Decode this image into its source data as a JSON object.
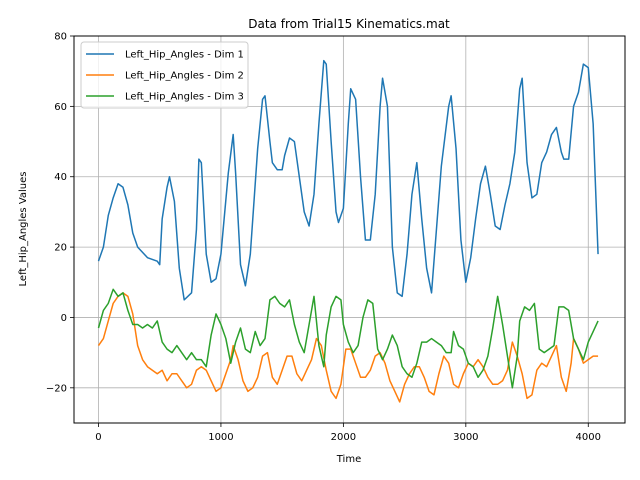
{
  "chart_data": {
    "type": "line",
    "title": "Data from Trial15 Kinematics.mat",
    "xlabel": "Time",
    "ylabel": "Left_Hip_Angles Values",
    "xlim": [
      -200,
      4300
    ],
    "ylim": [
      -30,
      80
    ],
    "xticks": [
      0,
      1000,
      2000,
      3000,
      4000
    ],
    "yticks": [
      -20,
      0,
      20,
      40,
      60,
      80
    ],
    "grid": true,
    "legend_position": "top-left",
    "series": [
      {
        "name": "Left_Hip_Angles - Dim 1",
        "color": "#1f77b4",
        "points": [
          [
            0,
            16
          ],
          [
            40,
            20
          ],
          [
            80,
            29
          ],
          [
            120,
            34
          ],
          [
            160,
            38
          ],
          [
            200,
            37
          ],
          [
            240,
            32
          ],
          [
            280,
            24
          ],
          [
            320,
            20
          ],
          [
            400,
            17
          ],
          [
            480,
            16
          ],
          [
            500,
            15
          ],
          [
            520,
            28
          ],
          [
            560,
            37
          ],
          [
            580,
            40
          ],
          [
            620,
            33
          ],
          [
            660,
            14
          ],
          [
            700,
            5
          ],
          [
            760,
            7
          ],
          [
            800,
            25
          ],
          [
            820,
            45
          ],
          [
            840,
            44
          ],
          [
            880,
            18
          ],
          [
            920,
            10
          ],
          [
            960,
            11
          ],
          [
            1000,
            18
          ],
          [
            1060,
            41
          ],
          [
            1100,
            52
          ],
          [
            1120,
            41
          ],
          [
            1160,
            15
          ],
          [
            1200,
            9
          ],
          [
            1240,
            18
          ],
          [
            1300,
            48
          ],
          [
            1340,
            62
          ],
          [
            1360,
            63
          ],
          [
            1400,
            50
          ],
          [
            1420,
            44
          ],
          [
            1460,
            42
          ],
          [
            1500,
            42
          ],
          [
            1520,
            46
          ],
          [
            1560,
            51
          ],
          [
            1600,
            50
          ],
          [
            1640,
            40
          ],
          [
            1680,
            30
          ],
          [
            1720,
            26
          ],
          [
            1760,
            35
          ],
          [
            1800,
            55
          ],
          [
            1840,
            73
          ],
          [
            1860,
            72
          ],
          [
            1900,
            50
          ],
          [
            1940,
            30
          ],
          [
            1960,
            27
          ],
          [
            2000,
            31
          ],
          [
            2040,
            55
          ],
          [
            2060,
            65
          ],
          [
            2100,
            62
          ],
          [
            2140,
            40
          ],
          [
            2180,
            22
          ],
          [
            2220,
            22
          ],
          [
            2260,
            35
          ],
          [
            2300,
            60
          ],
          [
            2320,
            68
          ],
          [
            2360,
            60
          ],
          [
            2400,
            20
          ],
          [
            2440,
            7
          ],
          [
            2480,
            6
          ],
          [
            2520,
            18
          ],
          [
            2560,
            35
          ],
          [
            2600,
            44
          ],
          [
            2640,
            28
          ],
          [
            2680,
            14
          ],
          [
            2720,
            7
          ],
          [
            2760,
            25
          ],
          [
            2800,
            43
          ],
          [
            2860,
            60
          ],
          [
            2880,
            63
          ],
          [
            2920,
            48
          ],
          [
            2960,
            22
          ],
          [
            3000,
            10
          ],
          [
            3040,
            17
          ],
          [
            3080,
            28
          ],
          [
            3120,
            38
          ],
          [
            3160,
            43
          ],
          [
            3200,
            35
          ],
          [
            3240,
            26
          ],
          [
            3280,
            25
          ],
          [
            3320,
            32
          ],
          [
            3360,
            38
          ],
          [
            3400,
            47
          ],
          [
            3440,
            65
          ],
          [
            3460,
            68
          ],
          [
            3500,
            44
          ],
          [
            3540,
            34
          ],
          [
            3580,
            35
          ],
          [
            3620,
            44
          ],
          [
            3660,
            47
          ],
          [
            3700,
            52
          ],
          [
            3740,
            54
          ],
          [
            3780,
            47
          ],
          [
            3800,
            45
          ],
          [
            3840,
            45
          ],
          [
            3880,
            60
          ],
          [
            3920,
            64
          ],
          [
            3960,
            72
          ],
          [
            4000,
            71
          ],
          [
            4040,
            55
          ],
          [
            4080,
            18
          ]
        ]
      },
      {
        "name": "Left_Hip_Angles - Dim 2",
        "color": "#ff7f0e",
        "points": [
          [
            0,
            -8
          ],
          [
            40,
            -6
          ],
          [
            80,
            -1
          ],
          [
            120,
            4
          ],
          [
            160,
            6
          ],
          [
            200,
            7
          ],
          [
            240,
            6
          ],
          [
            280,
            1
          ],
          [
            320,
            -8
          ],
          [
            360,
            -12
          ],
          [
            400,
            -14
          ],
          [
            440,
            -15
          ],
          [
            480,
            -16
          ],
          [
            520,
            -15
          ],
          [
            560,
            -18
          ],
          [
            600,
            -16
          ],
          [
            640,
            -16
          ],
          [
            680,
            -18
          ],
          [
            720,
            -20
          ],
          [
            760,
            -19
          ],
          [
            800,
            -15
          ],
          [
            840,
            -14
          ],
          [
            880,
            -15
          ],
          [
            920,
            -18
          ],
          [
            960,
            -21
          ],
          [
            1000,
            -20
          ],
          [
            1040,
            -16
          ],
          [
            1080,
            -12
          ],
          [
            1100,
            -8
          ],
          [
            1140,
            -12
          ],
          [
            1180,
            -18
          ],
          [
            1220,
            -21
          ],
          [
            1260,
            -20
          ],
          [
            1300,
            -17
          ],
          [
            1340,
            -11
          ],
          [
            1380,
            -10
          ],
          [
            1420,
            -17
          ],
          [
            1460,
            -19
          ],
          [
            1500,
            -15
          ],
          [
            1540,
            -11
          ],
          [
            1580,
            -11
          ],
          [
            1620,
            -16
          ],
          [
            1660,
            -18
          ],
          [
            1700,
            -15
          ],
          [
            1740,
            -12
          ],
          [
            1780,
            -6
          ],
          [
            1820,
            -8
          ],
          [
            1860,
            -15
          ],
          [
            1900,
            -21
          ],
          [
            1940,
            -23
          ],
          [
            1980,
            -19
          ],
          [
            2020,
            -9
          ],
          [
            2060,
            -9
          ],
          [
            2100,
            -13
          ],
          [
            2140,
            -17
          ],
          [
            2180,
            -17
          ],
          [
            2220,
            -15
          ],
          [
            2260,
            -11
          ],
          [
            2300,
            -10
          ],
          [
            2340,
            -13
          ],
          [
            2380,
            -18
          ],
          [
            2420,
            -21
          ],
          [
            2460,
            -24
          ],
          [
            2500,
            -19
          ],
          [
            2540,
            -16
          ],
          [
            2580,
            -14
          ],
          [
            2620,
            -14
          ],
          [
            2660,
            -17
          ],
          [
            2700,
            -21
          ],
          [
            2740,
            -22
          ],
          [
            2780,
            -16
          ],
          [
            2820,
            -11
          ],
          [
            2860,
            -13
          ],
          [
            2900,
            -19
          ],
          [
            2940,
            -20
          ],
          [
            2980,
            -16
          ],
          [
            3020,
            -13
          ],
          [
            3060,
            -14
          ],
          [
            3100,
            -12
          ],
          [
            3140,
            -14
          ],
          [
            3180,
            -17
          ],
          [
            3220,
            -19
          ],
          [
            3260,
            -19
          ],
          [
            3300,
            -18
          ],
          [
            3340,
            -15
          ],
          [
            3380,
            -7
          ],
          [
            3420,
            -11
          ],
          [
            3460,
            -16
          ],
          [
            3500,
            -23
          ],
          [
            3540,
            -22
          ],
          [
            3580,
            -15
          ],
          [
            3620,
            -13
          ],
          [
            3660,
            -14
          ],
          [
            3700,
            -11
          ],
          [
            3740,
            -8
          ],
          [
            3780,
            -17
          ],
          [
            3820,
            -21
          ],
          [
            3860,
            -13
          ],
          [
            3880,
            -6
          ],
          [
            3920,
            -9
          ],
          [
            3960,
            -13
          ],
          [
            4000,
            -12
          ],
          [
            4040,
            -11
          ],
          [
            4080,
            -11
          ]
        ]
      },
      {
        "name": "Left_Hip_Angles - Dim 3",
        "color": "#2ca02c",
        "points": [
          [
            0,
            -3
          ],
          [
            40,
            2
          ],
          [
            80,
            4
          ],
          [
            120,
            8
          ],
          [
            160,
            6
          ],
          [
            200,
            7
          ],
          [
            240,
            2
          ],
          [
            280,
            -2
          ],
          [
            320,
            -2
          ],
          [
            360,
            -3
          ],
          [
            400,
            -2
          ],
          [
            440,
            -3
          ],
          [
            480,
            -1
          ],
          [
            520,
            -7
          ],
          [
            560,
            -9
          ],
          [
            600,
            -10
          ],
          [
            640,
            -8
          ],
          [
            680,
            -10
          ],
          [
            720,
            -12
          ],
          [
            760,
            -10
          ],
          [
            800,
            -12
          ],
          [
            840,
            -12
          ],
          [
            880,
            -14
          ],
          [
            920,
            -5
          ],
          [
            960,
            1
          ],
          [
            1000,
            -2
          ],
          [
            1040,
            -6
          ],
          [
            1080,
            -13
          ],
          [
            1120,
            -7
          ],
          [
            1160,
            -3
          ],
          [
            1200,
            -9
          ],
          [
            1240,
            -10
          ],
          [
            1280,
            -4
          ],
          [
            1320,
            -8
          ],
          [
            1360,
            -6
          ],
          [
            1400,
            5
          ],
          [
            1440,
            6
          ],
          [
            1480,
            4
          ],
          [
            1520,
            3
          ],
          [
            1560,
            5
          ],
          [
            1600,
            -2
          ],
          [
            1640,
            -7
          ],
          [
            1680,
            -10
          ],
          [
            1720,
            -2
          ],
          [
            1760,
            6
          ],
          [
            1800,
            -8
          ],
          [
            1840,
            -14
          ],
          [
            1860,
            -5
          ],
          [
            1900,
            3
          ],
          [
            1940,
            6
          ],
          [
            1980,
            5
          ],
          [
            2000,
            -2
          ],
          [
            2040,
            -7
          ],
          [
            2080,
            -10
          ],
          [
            2120,
            -8
          ],
          [
            2160,
            0
          ],
          [
            2200,
            5
          ],
          [
            2240,
            4
          ],
          [
            2280,
            -9
          ],
          [
            2320,
            -12
          ],
          [
            2360,
            -9
          ],
          [
            2400,
            -5
          ],
          [
            2440,
            -8
          ],
          [
            2480,
            -14
          ],
          [
            2520,
            -16
          ],
          [
            2560,
            -17
          ],
          [
            2600,
            -13
          ],
          [
            2640,
            -7
          ],
          [
            2680,
            -7
          ],
          [
            2720,
            -6
          ],
          [
            2760,
            -7
          ],
          [
            2800,
            -8
          ],
          [
            2840,
            -10
          ],
          [
            2880,
            -10
          ],
          [
            2900,
            -4
          ],
          [
            2940,
            -8
          ],
          [
            2980,
            -9
          ],
          [
            3020,
            -13
          ],
          [
            3060,
            -14
          ],
          [
            3100,
            -17
          ],
          [
            3140,
            -15
          ],
          [
            3180,
            -11
          ],
          [
            3220,
            -3
          ],
          [
            3260,
            6
          ],
          [
            3300,
            -2
          ],
          [
            3340,
            -11
          ],
          [
            3380,
            -20
          ],
          [
            3420,
            -11
          ],
          [
            3440,
            -1
          ],
          [
            3480,
            3
          ],
          [
            3520,
            2
          ],
          [
            3560,
            4
          ],
          [
            3600,
            -9
          ],
          [
            3640,
            -10
          ],
          [
            3680,
            -9
          ],
          [
            3720,
            -8
          ],
          [
            3760,
            3
          ],
          [
            3800,
            3
          ],
          [
            3840,
            2
          ],
          [
            3880,
            -6
          ],
          [
            3920,
            -9
          ],
          [
            3960,
            -12
          ],
          [
            4000,
            -7
          ],
          [
            4040,
            -4
          ],
          [
            4080,
            -1
          ]
        ]
      }
    ]
  }
}
